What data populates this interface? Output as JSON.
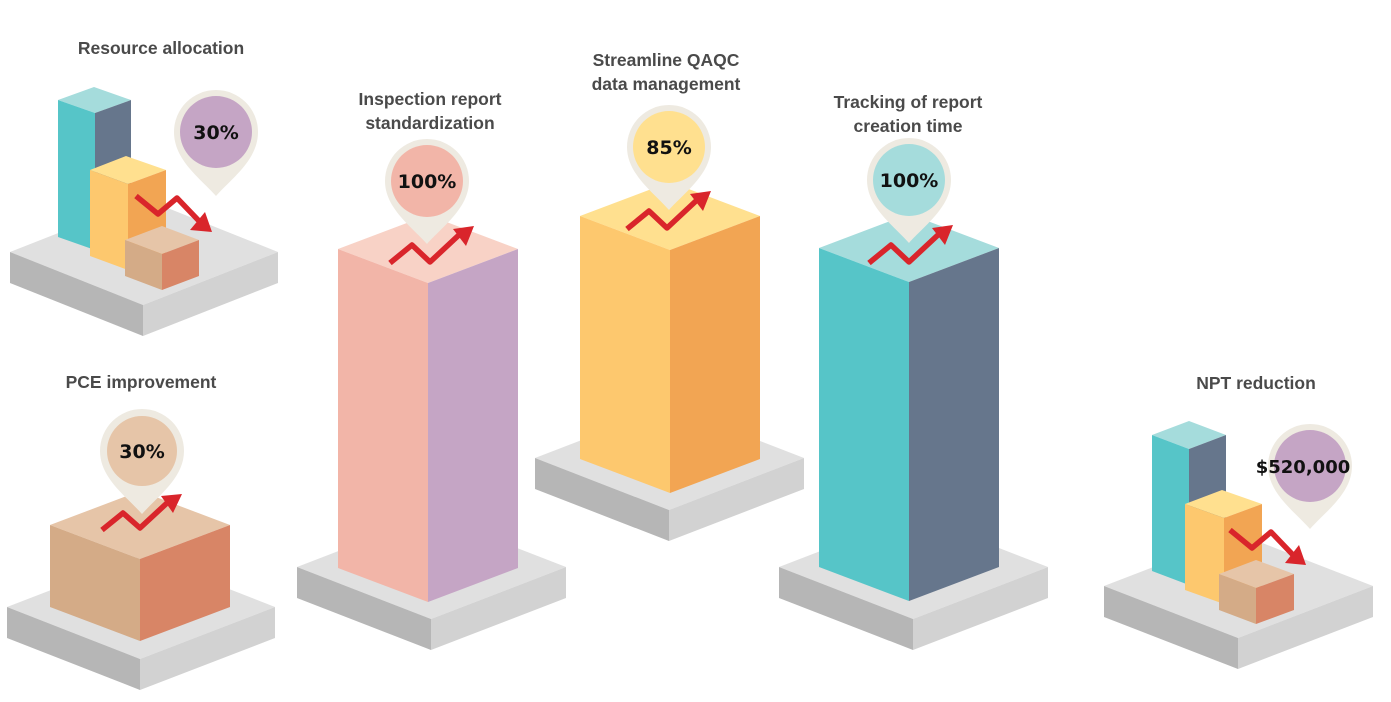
{
  "metrics": {
    "resource_allocation": {
      "label_lines": [
        "Resource allocation"
      ],
      "value": "30%",
      "trend": "down"
    },
    "pce_improvement": {
      "label_lines": [
        "PCE improvement"
      ],
      "value": "30%",
      "trend": "up"
    },
    "inspection_report": {
      "label_lines": [
        "Inspection report",
        "standardization"
      ],
      "value": "100%",
      "trend": "up"
    },
    "streamline_qaqc": {
      "label_lines": [
        "Streamline QAQC",
        "data management"
      ],
      "value": "85%",
      "trend": "up"
    },
    "tracking_report": {
      "label_lines": [
        "Tracking of report",
        "creation time"
      ],
      "value": "100%",
      "trend": "up"
    },
    "npt_reduction": {
      "label_lines": [
        "NPT reduction"
      ],
      "value": "$520,000",
      "trend": "down"
    }
  },
  "colors": {
    "pink": "#f2b5a8",
    "lavender": "#c5a5c5",
    "yellow": "#fdc86e",
    "orange": "#f2a553",
    "teal": "#56c5c8",
    "slate": "#66768c",
    "tan": "#d4ab87",
    "terracotta": "#d88566",
    "platform_top": "#e0e0e0",
    "platform_left": "#b6b6b6",
    "platform_right": "#d2d2d2",
    "arrow": "#d9252b",
    "pin_shell": "#eeeae1"
  },
  "icons": {
    "trend_up": "trend-up-arrow-icon",
    "trend_down": "trend-down-arrow-icon",
    "pin": "map-pin-icon"
  }
}
